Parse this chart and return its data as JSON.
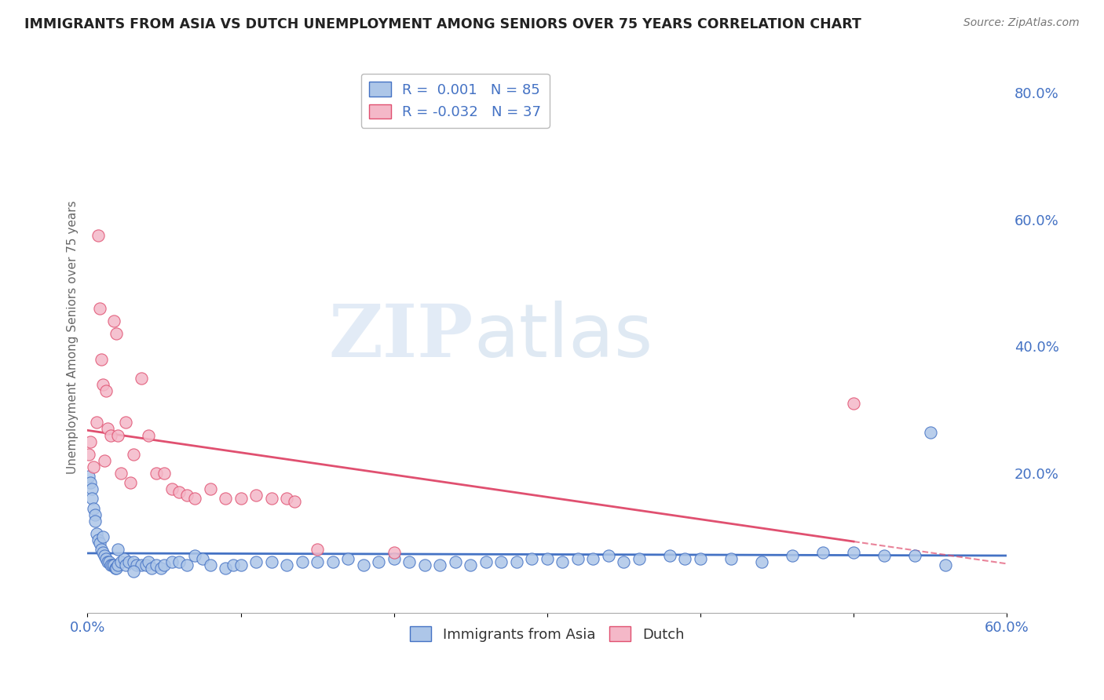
{
  "title": "IMMIGRANTS FROM ASIA VS DUTCH UNEMPLOYMENT AMONG SENIORS OVER 75 YEARS CORRELATION CHART",
  "source": "Source: ZipAtlas.com",
  "ylabel": "Unemployment Among Seniors over 75 years",
  "xlim": [
    0.0,
    0.6
  ],
  "ylim": [
    -0.02,
    0.85
  ],
  "xticks": [
    0.0,
    0.1,
    0.2,
    0.3,
    0.4,
    0.5,
    0.6
  ],
  "yticks_right": [
    0.0,
    0.2,
    0.4,
    0.6,
    0.8
  ],
  "blue_color": "#adc6e8",
  "blue_line_color": "#4472c4",
  "pink_color": "#f4b8c8",
  "pink_line_color": "#e05070",
  "legend_R1": "R =  0.001",
  "legend_N1": "N = 85",
  "legend_R2": "R = -0.032",
  "legend_N2": "N = 37",
  "legend_label1": "Immigrants from Asia",
  "legend_label2": "Dutch",
  "watermark_zip": "ZIP",
  "watermark_atlas": "atlas",
  "background_color": "#ffffff",
  "grid_color": "#c8c8c8",
  "blue_x": [
    0.001,
    0.002,
    0.003,
    0.003,
    0.004,
    0.005,
    0.005,
    0.006,
    0.007,
    0.008,
    0.009,
    0.01,
    0.011,
    0.012,
    0.013,
    0.014,
    0.015,
    0.016,
    0.017,
    0.018,
    0.019,
    0.02,
    0.022,
    0.024,
    0.025,
    0.027,
    0.03,
    0.032,
    0.035,
    0.038,
    0.04,
    0.042,
    0.045,
    0.048,
    0.05,
    0.055,
    0.06,
    0.065,
    0.07,
    0.075,
    0.08,
    0.09,
    0.095,
    0.1,
    0.11,
    0.12,
    0.13,
    0.14,
    0.15,
    0.16,
    0.17,
    0.18,
    0.19,
    0.2,
    0.21,
    0.22,
    0.23,
    0.24,
    0.25,
    0.26,
    0.27,
    0.28,
    0.29,
    0.3,
    0.31,
    0.32,
    0.33,
    0.34,
    0.35,
    0.36,
    0.38,
    0.39,
    0.4,
    0.42,
    0.44,
    0.46,
    0.48,
    0.5,
    0.52,
    0.54,
    0.56,
    0.01,
    0.02,
    0.03,
    0.55
  ],
  "blue_y": [
    0.195,
    0.185,
    0.175,
    0.16,
    0.145,
    0.135,
    0.125,
    0.105,
    0.095,
    0.09,
    0.08,
    0.075,
    0.07,
    0.065,
    0.06,
    0.06,
    0.055,
    0.055,
    0.055,
    0.05,
    0.05,
    0.055,
    0.06,
    0.065,
    0.055,
    0.06,
    0.06,
    0.055,
    0.055,
    0.055,
    0.06,
    0.05,
    0.055,
    0.05,
    0.055,
    0.06,
    0.06,
    0.055,
    0.07,
    0.065,
    0.055,
    0.05,
    0.055,
    0.055,
    0.06,
    0.06,
    0.055,
    0.06,
    0.06,
    0.06,
    0.065,
    0.055,
    0.06,
    0.065,
    0.06,
    0.055,
    0.055,
    0.06,
    0.055,
    0.06,
    0.06,
    0.06,
    0.065,
    0.065,
    0.06,
    0.065,
    0.065,
    0.07,
    0.06,
    0.065,
    0.07,
    0.065,
    0.065,
    0.065,
    0.06,
    0.07,
    0.075,
    0.075,
    0.07,
    0.07,
    0.055,
    0.1,
    0.08,
    0.045,
    0.265
  ],
  "pink_x": [
    0.001,
    0.002,
    0.004,
    0.006,
    0.007,
    0.008,
    0.009,
    0.01,
    0.011,
    0.012,
    0.013,
    0.015,
    0.017,
    0.019,
    0.02,
    0.022,
    0.025,
    0.028,
    0.03,
    0.035,
    0.04,
    0.045,
    0.05,
    0.055,
    0.06,
    0.065,
    0.07,
    0.08,
    0.09,
    0.1,
    0.11,
    0.12,
    0.13,
    0.135,
    0.15,
    0.2,
    0.5
  ],
  "pink_y": [
    0.23,
    0.25,
    0.21,
    0.28,
    0.575,
    0.46,
    0.38,
    0.34,
    0.22,
    0.33,
    0.27,
    0.26,
    0.44,
    0.42,
    0.26,
    0.2,
    0.28,
    0.185,
    0.23,
    0.35,
    0.26,
    0.2,
    0.2,
    0.175,
    0.17,
    0.165,
    0.16,
    0.175,
    0.16,
    0.16,
    0.165,
    0.16,
    0.16,
    0.155,
    0.08,
    0.075,
    0.31
  ]
}
